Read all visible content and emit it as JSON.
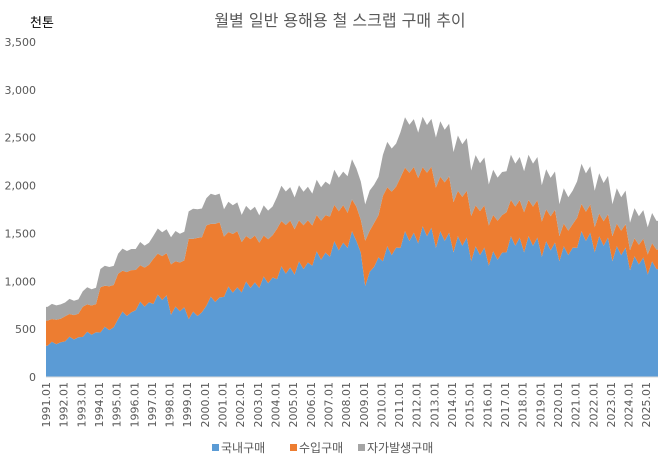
{
  "chart_data": {
    "type": "area",
    "stacked": true,
    "title": "월별 일반 용해용 철 스크랩 구매 추이",
    "ylabel": "천톤",
    "xlabel": "",
    "ylim": [
      0,
      3500
    ],
    "yticks": [
      0,
      500,
      1000,
      1500,
      2000,
      2500,
      3000,
      3500
    ],
    "ytick_labels": [
      "0",
      "500",
      "1,000",
      "1,500",
      "2,000",
      "2,500",
      "3,000",
      "3,500"
    ],
    "x_tick_labels": [
      "1991.01",
      "1992.01",
      "1993.01",
      "1994.01",
      "1995.01",
      "1996.01",
      "1997.01",
      "1998.01",
      "1999.01",
      "2000.01",
      "2001.01",
      "2002.01",
      "2003.01",
      "2004.01",
      "2005.01",
      "2006.01",
      "2007.01",
      "2008.01",
      "2009.01",
      "2010.01",
      "2011.01",
      "2012.01",
      "2013.01",
      "2014.01",
      "2015.01",
      "2016.01",
      "2017.01",
      "2018.01",
      "2019.01",
      "2020.01",
      "2021.01",
      "2022.01",
      "2023.01",
      "2024.01",
      "2025.01"
    ],
    "x_resolution": "quarterly approximation, 1991Q1-2025Q3",
    "legend_position": "bottom",
    "series": [
      {
        "name": "국내구매",
        "color": "#5B9BD5",
        "values": [
          326,
          368,
          343,
          364,
          372,
          420,
          392,
          416,
          419,
          473,
          441,
          468,
          465,
          525,
          490,
          520,
          605,
          683,
          637,
          676,
          698,
          788,
          735,
          780,
          763,
          861,
          804,
          853,
          651,
          735,
          686,
          728,
          605,
          683,
          637,
          676,
          744,
          840,
          784,
          832,
          837,
          945,
          882,
          936,
          884,
          998,
          931,
          988,
          930,
          1050,
          980,
          1040,
          1023,
          1155,
          1078,
          1144,
          1070,
          1208,
          1127,
          1196,
          1163,
          1313,
          1225,
          1300,
          1256,
          1418,
          1323,
          1404,
          1349,
          1523,
          1421,
          1300,
          950,
          1100,
          1150,
          1250,
          1209,
          1365,
          1274,
          1352,
          1349,
          1523,
          1421,
          1508,
          1395,
          1575,
          1470,
          1560,
          1349,
          1523,
          1421,
          1508,
          1302,
          1470,
          1372,
          1456,
          1209,
          1365,
          1274,
          1352,
          1163,
          1313,
          1225,
          1300,
          1302,
          1470,
          1372,
          1456,
          1302,
          1470,
          1372,
          1456,
          1256,
          1418,
          1323,
          1404,
          1209,
          1365,
          1274,
          1352,
          1349,
          1523,
          1421,
          1508,
          1302,
          1470,
          1372,
          1456,
          1209,
          1365,
          1274,
          1352,
          1116,
          1260,
          1176,
          1248,
          1070,
          1208,
          1127
        ]
      },
      {
        "name": "수입구매",
        "color": "#ED7D31",
        "values": [
          263,
          238,
          255,
          245,
          263,
          238,
          255,
          245,
          315,
          285,
          306,
          294,
          473,
          428,
          459,
          441,
          473,
          428,
          459,
          441,
          420,
          380,
          408,
          392,
          473,
          428,
          459,
          441,
          525,
          475,
          510,
          490,
          840,
          760,
          816,
          784,
          840,
          760,
          816,
          784,
          630,
          570,
          612,
          588,
          525,
          475,
          510,
          490,
          473,
          428,
          459,
          441,
          525,
          475,
          510,
          490,
          473,
          428,
          459,
          441,
          420,
          380,
          408,
          392,
          420,
          380,
          408,
          392,
          368,
          333,
          357,
          343,
          473,
          428,
          459,
          441,
          683,
          618,
          663,
          637,
          735,
          665,
          714,
          686,
          683,
          618,
          663,
          637,
          630,
          570,
          612,
          588,
          525,
          475,
          510,
          490,
          473,
          428,
          459,
          441,
          420,
          380,
          408,
          392,
          420,
          380,
          408,
          392,
          420,
          380,
          408,
          392,
          368,
          333,
          357,
          343,
          263,
          238,
          255,
          245,
          315,
          285,
          306,
          294,
          263,
          238,
          255,
          245,
          263,
          238,
          255,
          245,
          210,
          190,
          204,
          196,
          210,
          190,
          204
        ]
      },
      {
        "name": "자가발생구매",
        "color": "#A5A5A5",
        "values": [
          143,
          158,
          150,
          150,
          143,
          158,
          150,
          150,
          162,
          179,
          170,
          170,
          190,
          210,
          200,
          200,
          209,
          231,
          220,
          220,
          219,
          242,
          230,
          230,
          238,
          263,
          250,
          250,
          285,
          315,
          300,
          300,
          285,
          315,
          300,
          300,
          285,
          315,
          300,
          300,
          285,
          315,
          300,
          300,
          285,
          315,
          300,
          300,
          285,
          315,
          300,
          300,
          333,
          368,
          350,
          350,
          333,
          368,
          350,
          350,
          333,
          368,
          350,
          350,
          333,
          368,
          350,
          350,
          380,
          420,
          400,
          400,
          380,
          420,
          400,
          400,
          428,
          473,
          450,
          450,
          475,
          525,
          500,
          500,
          475,
          525,
          500,
          500,
          523,
          578,
          550,
          550,
          523,
          578,
          550,
          550,
          475,
          525,
          500,
          500,
          428,
          473,
          450,
          450,
          428,
          473,
          450,
          450,
          428,
          473,
          450,
          450,
          380,
          420,
          400,
          400,
          333,
          368,
          350,
          350,
          380,
          420,
          400,
          400,
          380,
          420,
          400,
          400,
          333,
          368,
          350,
          350,
          285,
          315,
          300,
          300,
          285,
          315,
          300
        ]
      }
    ]
  }
}
